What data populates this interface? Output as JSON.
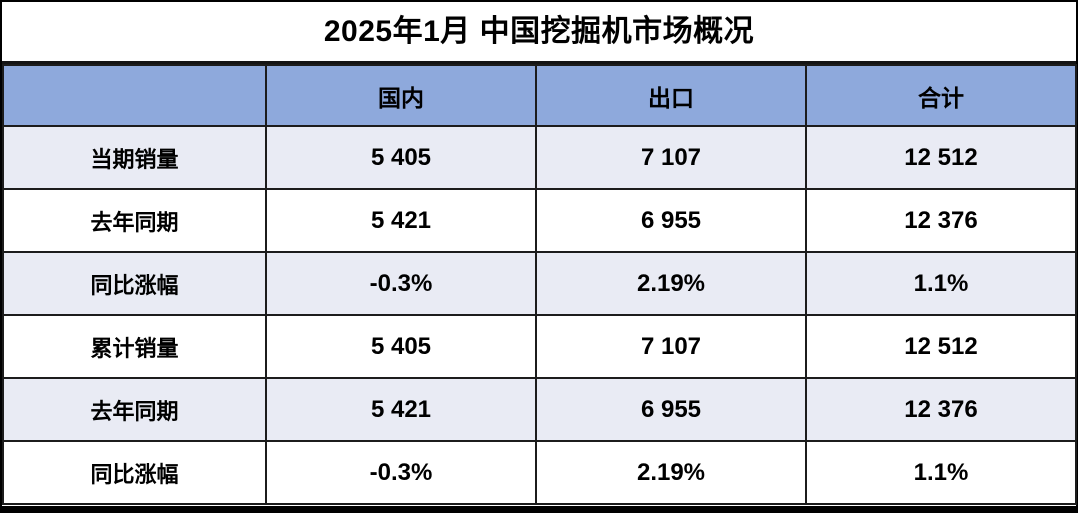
{
  "title": "2025年1月 中国挖掘机市场概况",
  "colors": {
    "header_bg": "#8EA9DC",
    "band_row_bg": "#E9EBF4",
    "plain_row_bg": "#FFFFFF",
    "border": "#1C1C1C",
    "header_bottom_border": "#2C3447",
    "text": "#000000"
  },
  "table": {
    "headers": [
      "",
      "国内",
      "出口",
      "合计"
    ],
    "rows": [
      {
        "label": "当期销量",
        "values": [
          "5 405",
          "7 107",
          "12 512"
        ]
      },
      {
        "label": "去年同期",
        "values": [
          "5 421",
          "6 955",
          "12 376"
        ]
      },
      {
        "label": "同比涨幅",
        "values": [
          "-0.3%",
          "2.19%",
          "1.1%"
        ]
      },
      {
        "label": "累计销量",
        "values": [
          "5 405",
          "7 107",
          "12 512"
        ]
      },
      {
        "label": "去年同期",
        "values": [
          "5 421",
          "6 955",
          "12 376"
        ]
      },
      {
        "label": "同比涨幅",
        "values": [
          "-0.3%",
          "2.19%",
          "1.1%"
        ]
      }
    ]
  },
  "chart_data": {
    "type": "table",
    "title": "2025年1月 中国挖掘机市场概况",
    "columns": [
      "",
      "国内",
      "出口",
      "合计"
    ],
    "rows": [
      [
        "当期销量",
        5405,
        7107,
        12512
      ],
      [
        "去年同期",
        5421,
        6955,
        12376
      ],
      [
        "同比涨幅",
        "-0.3%",
        "2.19%",
        "1.1%"
      ],
      [
        "累计销量",
        5405,
        7107,
        12512
      ],
      [
        "去年同期",
        5421,
        6955,
        12376
      ],
      [
        "同比涨幅",
        "-0.3%",
        "2.19%",
        "1.1%"
      ]
    ]
  }
}
